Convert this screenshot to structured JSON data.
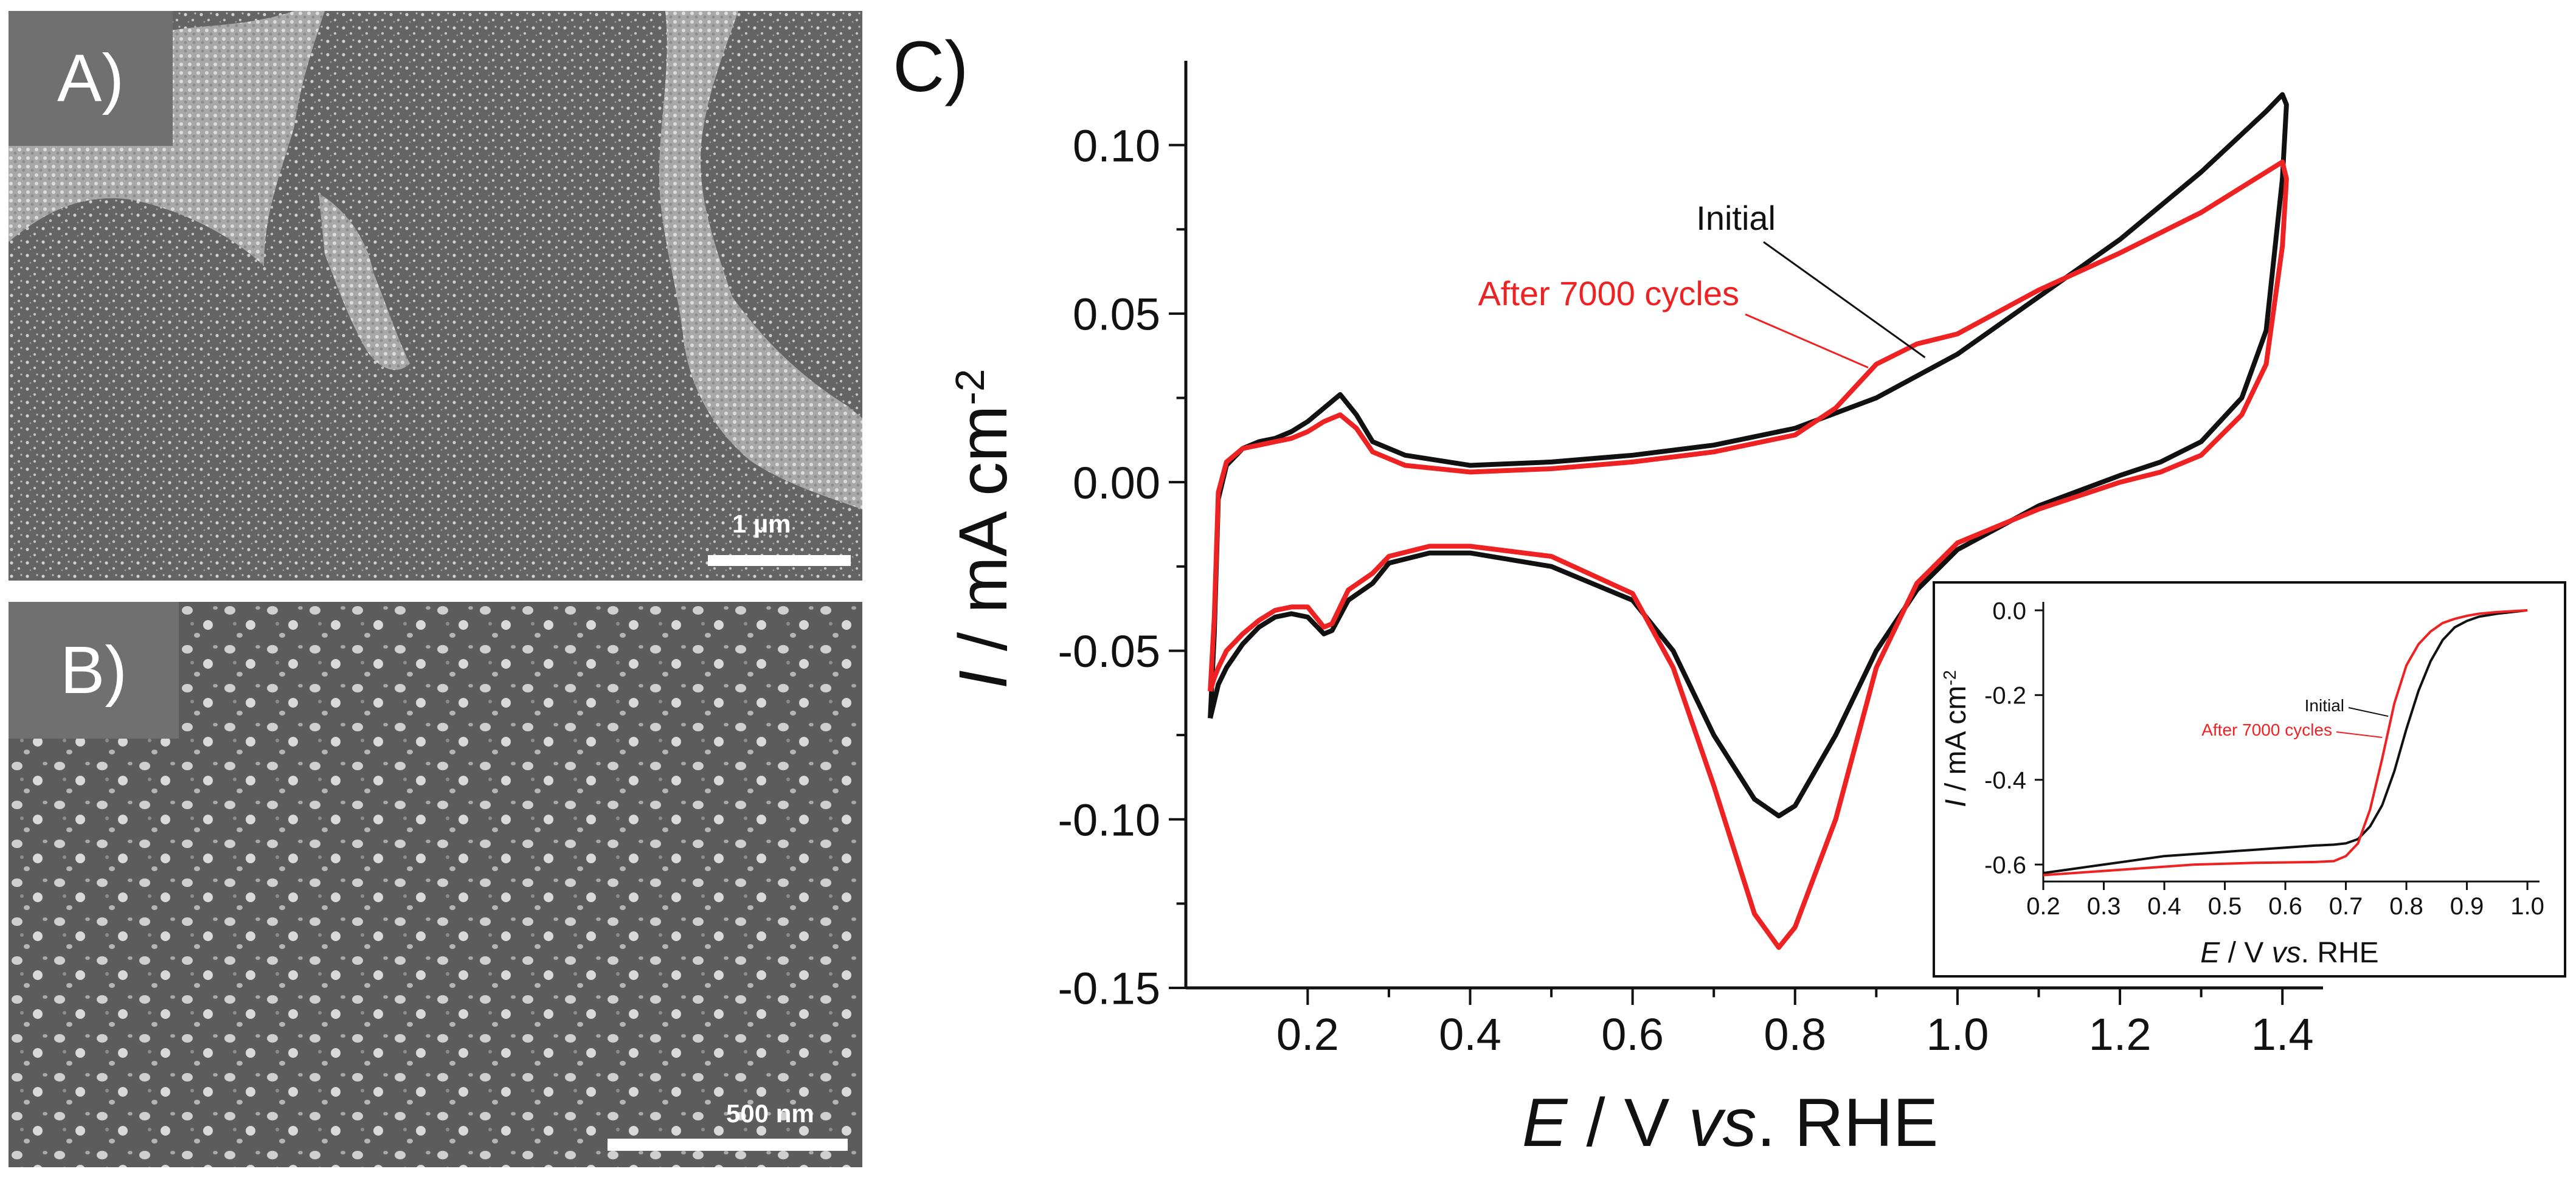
{
  "panels": {
    "a": {
      "label": "A)",
      "scale_text": "1 µm"
    },
    "b": {
      "label": "B)",
      "scale_text": "500 nm"
    },
    "c": {
      "label": "C)"
    }
  },
  "colors": {
    "initial": "#111111",
    "after": "#ee2222",
    "axis": "#111111"
  },
  "chart_data": [
    {
      "type": "line",
      "title": "",
      "xlabel_parts": [
        "E",
        " / V ",
        "vs",
        ". RHE"
      ],
      "ylabel_parts": [
        "I",
        " / mA cm",
        "-2"
      ],
      "xlim": [
        0.05,
        1.45
      ],
      "ylim": [
        -0.15,
        0.125
      ],
      "xticks": [
        0.2,
        0.4,
        0.6,
        0.8,
        1.0,
        1.2,
        1.4
      ],
      "xtick_labels": [
        "0.2",
        "0.4",
        "0.6",
        "0.8",
        "1.0",
        "1.2",
        "1.4"
      ],
      "yticks": [
        -0.15,
        -0.1,
        -0.05,
        0.0,
        0.05,
        0.1
      ],
      "ytick_labels": [
        "-0.15",
        "-0.10",
        "-0.05",
        "0.00",
        "0.05",
        "0.10"
      ],
      "series": [
        {
          "name": "Initial",
          "color": "#111111",
          "x": [
            0.08,
            0.085,
            0.09,
            0.1,
            0.12,
            0.14,
            0.16,
            0.18,
            0.2,
            0.22,
            0.24,
            0.26,
            0.28,
            0.32,
            0.4,
            0.5,
            0.6,
            0.7,
            0.8,
            0.9,
            1.0,
            1.1,
            1.2,
            1.3,
            1.38,
            1.4,
            1.405,
            1.4,
            1.38,
            1.35,
            1.3,
            1.25,
            1.2,
            1.1,
            1.0,
            0.95,
            0.9,
            0.85,
            0.8,
            0.78,
            0.75,
            0.7,
            0.65,
            0.6,
            0.5,
            0.4,
            0.35,
            0.3,
            0.28,
            0.25,
            0.23,
            0.22,
            0.2,
            0.18,
            0.16,
            0.14,
            0.12,
            0.1,
            0.09,
            0.085,
            0.08
          ],
          "y": [
            -0.07,
            -0.045,
            -0.005,
            0.005,
            0.01,
            0.012,
            0.013,
            0.015,
            0.018,
            0.022,
            0.026,
            0.02,
            0.012,
            0.008,
            0.005,
            0.006,
            0.008,
            0.011,
            0.016,
            0.025,
            0.038,
            0.055,
            0.072,
            0.092,
            0.11,
            0.115,
            0.112,
            0.09,
            0.045,
            0.025,
            0.012,
            0.006,
            0.002,
            -0.007,
            -0.02,
            -0.032,
            -0.05,
            -0.075,
            -0.096,
            -0.099,
            -0.094,
            -0.075,
            -0.05,
            -0.035,
            -0.025,
            -0.021,
            -0.021,
            -0.024,
            -0.03,
            -0.035,
            -0.044,
            -0.045,
            -0.04,
            -0.039,
            -0.04,
            -0.043,
            -0.048,
            -0.055,
            -0.06,
            -0.065,
            -0.07
          ]
        },
        {
          "name": "After 7000 cycles",
          "color": "#ee2222",
          "x": [
            0.08,
            0.085,
            0.09,
            0.1,
            0.12,
            0.14,
            0.16,
            0.18,
            0.2,
            0.22,
            0.24,
            0.26,
            0.28,
            0.32,
            0.4,
            0.5,
            0.6,
            0.7,
            0.8,
            0.85,
            0.9,
            0.95,
            1.0,
            1.1,
            1.2,
            1.3,
            1.38,
            1.4,
            1.405,
            1.4,
            1.38,
            1.35,
            1.3,
            1.25,
            1.2,
            1.1,
            1.0,
            0.95,
            0.9,
            0.85,
            0.8,
            0.78,
            0.75,
            0.7,
            0.65,
            0.6,
            0.5,
            0.4,
            0.35,
            0.3,
            0.28,
            0.25,
            0.23,
            0.22,
            0.2,
            0.18,
            0.16,
            0.14,
            0.12,
            0.1,
            0.09,
            0.085,
            0.08
          ],
          "y": [
            -0.062,
            -0.04,
            -0.003,
            0.006,
            0.01,
            0.011,
            0.012,
            0.013,
            0.015,
            0.018,
            0.02,
            0.016,
            0.009,
            0.005,
            0.003,
            0.004,
            0.006,
            0.009,
            0.014,
            0.022,
            0.035,
            0.041,
            0.044,
            0.057,
            0.068,
            0.08,
            0.092,
            0.095,
            0.09,
            0.07,
            0.035,
            0.02,
            0.008,
            0.003,
            0.0,
            -0.008,
            -0.018,
            -0.03,
            -0.055,
            -0.1,
            -0.132,
            -0.138,
            -0.128,
            -0.09,
            -0.055,
            -0.033,
            -0.022,
            -0.019,
            -0.019,
            -0.022,
            -0.027,
            -0.032,
            -0.042,
            -0.043,
            -0.037,
            -0.037,
            -0.038,
            -0.041,
            -0.045,
            -0.05,
            -0.055,
            -0.058,
            -0.062
          ]
        }
      ],
      "annotations": [
        {
          "text": "Initial",
          "series": "Initial",
          "point": [
            0.96,
            0.037
          ]
        },
        {
          "text": "After 7000 cycles",
          "series": "After 7000 cycles",
          "point": [
            0.89,
            0.034
          ]
        }
      ]
    },
    {
      "type": "line",
      "title": "",
      "xlabel_parts": [
        "E",
        " / V ",
        "vs",
        ". RHE"
      ],
      "ylabel_parts": [
        "I",
        " / mA cm",
        "-2"
      ],
      "xlim": [
        0.2,
        1.02
      ],
      "ylim": [
        -0.64,
        0.02
      ],
      "xticks": [
        0.2,
        0.3,
        0.4,
        0.5,
        0.6,
        0.7,
        0.8,
        0.9,
        1.0
      ],
      "xtick_labels": [
        "0.2",
        "0.3",
        "0.4",
        "0.5",
        "0.6",
        "0.7",
        "0.8",
        "0.9",
        "1.0"
      ],
      "yticks": [
        0.0,
        -0.2,
        -0.4,
        -0.6
      ],
      "ytick_labels": [
        "0.0",
        "-0.2",
        "-0.4",
        "-0.6"
      ],
      "series": [
        {
          "name": "Initial",
          "color": "#111111",
          "x": [
            0.2,
            0.25,
            0.3,
            0.35,
            0.4,
            0.45,
            0.5,
            0.55,
            0.6,
            0.65,
            0.68,
            0.7,
            0.72,
            0.74,
            0.76,
            0.78,
            0.8,
            0.82,
            0.84,
            0.86,
            0.88,
            0.9,
            0.92,
            0.95,
            1.0
          ],
          "y": [
            -0.62,
            -0.61,
            -0.6,
            -0.59,
            -0.58,
            -0.575,
            -0.57,
            -0.565,
            -0.56,
            -0.555,
            -0.553,
            -0.55,
            -0.54,
            -0.51,
            -0.46,
            -0.38,
            -0.28,
            -0.19,
            -0.12,
            -0.07,
            -0.04,
            -0.025,
            -0.015,
            -0.008,
            0.0
          ]
        },
        {
          "name": "After 7000 cycles",
          "color": "#ee2222",
          "x": [
            0.2,
            0.25,
            0.3,
            0.35,
            0.4,
            0.45,
            0.5,
            0.55,
            0.6,
            0.65,
            0.68,
            0.7,
            0.72,
            0.74,
            0.76,
            0.78,
            0.8,
            0.82,
            0.84,
            0.86,
            0.88,
            0.9,
            0.92,
            0.95,
            1.0
          ],
          "y": [
            -0.625,
            -0.62,
            -0.615,
            -0.61,
            -0.605,
            -0.6,
            -0.598,
            -0.596,
            -0.595,
            -0.594,
            -0.592,
            -0.58,
            -0.55,
            -0.47,
            -0.35,
            -0.22,
            -0.13,
            -0.08,
            -0.05,
            -0.03,
            -0.02,
            -0.013,
            -0.008,
            -0.004,
            0.0
          ]
        }
      ],
      "annotations": [
        {
          "text": "Initial",
          "series": "Initial",
          "point": [
            0.77,
            -0.25
          ]
        },
        {
          "text": "After 7000 cycles",
          "series": "After 7000 cycles",
          "point": [
            0.76,
            -0.3
          ]
        }
      ]
    }
  ]
}
